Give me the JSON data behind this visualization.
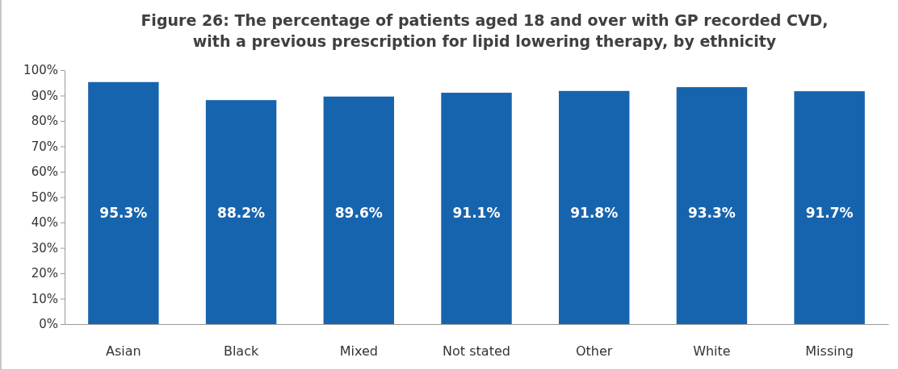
{
  "chart_data": {
    "type": "bar",
    "title": "Figure 26: The percentage of patients aged 18 and over with GP recorded CVD, with a previous prescription for lipid lowering therapy, by ethnicity",
    "categories": [
      "Asian",
      "Black",
      "Mixed",
      "Not stated",
      "Other",
      "White",
      "Missing"
    ],
    "values": [
      95.3,
      88.2,
      89.6,
      91.1,
      91.8,
      93.3,
      91.7
    ],
    "value_labels": [
      "95.3%",
      "88.2%",
      "89.6%",
      "91.1%",
      "91.8%",
      "93.3%",
      "91.7%"
    ],
    "color": "#1764ae",
    "ylim": [
      0,
      100
    ],
    "yticks": [
      {
        "value": 0,
        "label": "0%"
      },
      {
        "value": 10,
        "label": "10%"
      },
      {
        "value": 20,
        "label": "20%"
      },
      {
        "value": 30,
        "label": "30%"
      },
      {
        "value": 40,
        "label": "40%"
      },
      {
        "value": 50,
        "label": "50%"
      },
      {
        "value": 60,
        "label": "60%"
      },
      {
        "value": 70,
        "label": "70%"
      },
      {
        "value": 80,
        "label": "80%"
      },
      {
        "value": 90,
        "label": "90%"
      },
      {
        "value": 100,
        "label": "100%"
      }
    ],
    "grid": false
  }
}
